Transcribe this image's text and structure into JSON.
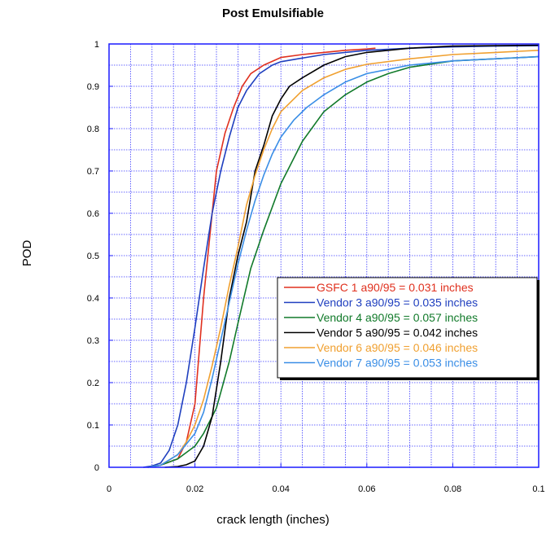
{
  "chart_data": {
    "type": "line",
    "title": "Post Emulsifiable",
    "xlabel": "crack length (inches)",
    "ylabel": "POD",
    "xlim": [
      0,
      0.1
    ],
    "ylim": [
      0,
      1
    ],
    "xticks": [
      "0",
      "0.02",
      "0.04",
      "0.06",
      "0.08",
      "0.1"
    ],
    "yticks": [
      "0",
      "0.1",
      "0.2",
      "0.3",
      "0.4",
      "0.5",
      "0.6",
      "0.7",
      "0.8",
      "0.9",
      "1"
    ],
    "grid": true,
    "legend_position": "right",
    "series": [
      {
        "name": "GSFC 1 a90/95 = 0.031 inches",
        "color": "#e0301e",
        "x": [
          0.009,
          0.012,
          0.016,
          0.018,
          0.02,
          0.022,
          0.024,
          0.025,
          0.027,
          0.029,
          0.031,
          0.033,
          0.036,
          0.04,
          0.045,
          0.05,
          0.055,
          0.06,
          0.062
        ],
        "y": [
          0,
          0.005,
          0.02,
          0.06,
          0.15,
          0.4,
          0.6,
          0.7,
          0.79,
          0.85,
          0.9,
          0.93,
          0.95,
          0.968,
          0.975,
          0.98,
          0.985,
          0.988,
          0.99
        ]
      },
      {
        "name": "Vendor 3 a90/95 = 0.035 inches",
        "color": "#1f3fbf",
        "x": [
          0.008,
          0.01,
          0.012,
          0.014,
          0.016,
          0.018,
          0.02,
          0.022,
          0.024,
          0.026,
          0.028,
          0.03,
          0.032,
          0.035,
          0.038,
          0.04,
          0.044,
          0.05,
          0.06,
          0.07,
          0.08,
          0.09,
          0.1
        ],
        "y": [
          0,
          0.003,
          0.01,
          0.04,
          0.1,
          0.2,
          0.33,
          0.47,
          0.6,
          0.7,
          0.78,
          0.85,
          0.89,
          0.93,
          0.95,
          0.958,
          0.965,
          0.975,
          0.985,
          0.99,
          0.993,
          0.995,
          0.996
        ]
      },
      {
        "name": "Vendor 4 a90/95 = 0.057 inches",
        "color": "#117a2a",
        "x": [
          0.009,
          0.012,
          0.016,
          0.02,
          0.022,
          0.025,
          0.028,
          0.03,
          0.033,
          0.036,
          0.04,
          0.045,
          0.05,
          0.055,
          0.06,
          0.065,
          0.07,
          0.08,
          0.09,
          0.1
        ],
        "y": [
          0,
          0.005,
          0.02,
          0.05,
          0.08,
          0.14,
          0.25,
          0.34,
          0.47,
          0.56,
          0.67,
          0.77,
          0.84,
          0.88,
          0.91,
          0.93,
          0.945,
          0.96,
          0.965,
          0.97
        ]
      },
      {
        "name": "Vendor 5 a90/95 = 0.042 inches",
        "color": "#000000",
        "x": [
          0.013,
          0.016,
          0.018,
          0.02,
          0.022,
          0.024,
          0.026,
          0.028,
          0.03,
          0.032,
          0.034,
          0.036,
          0.038,
          0.04,
          0.042,
          0.045,
          0.05,
          0.055,
          0.06,
          0.065,
          0.07,
          0.08,
          0.09,
          0.1
        ],
        "y": [
          0,
          0.002,
          0.006,
          0.015,
          0.05,
          0.12,
          0.25,
          0.4,
          0.5,
          0.58,
          0.7,
          0.76,
          0.83,
          0.87,
          0.9,
          0.92,
          0.95,
          0.97,
          0.98,
          0.985,
          0.99,
          0.995,
          0.996,
          0.997
        ]
      },
      {
        "name": "Vendor 6 a90/95 = 0.046 inches",
        "color": "#f0a030",
        "x": [
          0.009,
          0.012,
          0.016,
          0.018,
          0.02,
          0.022,
          0.024,
          0.026,
          0.028,
          0.03,
          0.032,
          0.034,
          0.036,
          0.038,
          0.04,
          0.045,
          0.05,
          0.055,
          0.06,
          0.07,
          0.08,
          0.09,
          0.1
        ],
        "y": [
          0,
          0.005,
          0.03,
          0.06,
          0.1,
          0.16,
          0.24,
          0.33,
          0.43,
          0.52,
          0.62,
          0.69,
          0.75,
          0.8,
          0.84,
          0.89,
          0.92,
          0.94,
          0.952,
          0.965,
          0.975,
          0.98,
          0.985
        ]
      },
      {
        "name": "Vendor 7 a90/95 = 0.053 inches",
        "color": "#3a8ee6",
        "x": [
          0.009,
          0.012,
          0.016,
          0.02,
          0.022,
          0.024,
          0.026,
          0.028,
          0.03,
          0.032,
          0.034,
          0.036,
          0.038,
          0.04,
          0.043,
          0.046,
          0.05,
          0.055,
          0.06,
          0.065,
          0.07,
          0.08,
          0.09,
          0.1
        ],
        "y": [
          0,
          0.005,
          0.03,
          0.08,
          0.13,
          0.21,
          0.3,
          0.39,
          0.48,
          0.56,
          0.63,
          0.69,
          0.74,
          0.78,
          0.82,
          0.85,
          0.88,
          0.91,
          0.93,
          0.94,
          0.95,
          0.96,
          0.965,
          0.97
        ]
      }
    ]
  }
}
